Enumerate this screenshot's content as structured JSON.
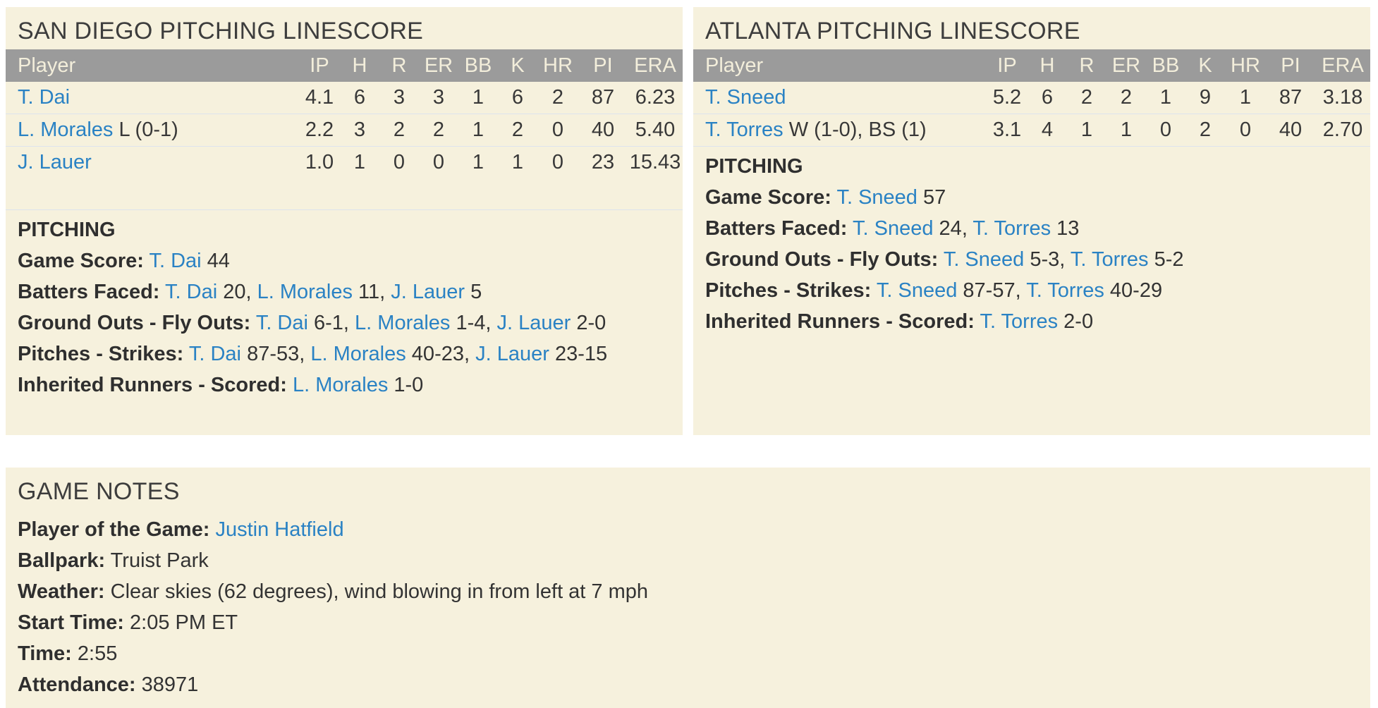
{
  "colors": {
    "page_bg": "#ffffff",
    "panel_bg": "#f6f1dd",
    "table_header_bg": "#9b9b9b",
    "table_header_text": "#f3eedb",
    "title_text": "#3d3d3d",
    "body_text": "#333333",
    "link": "#2a82c4",
    "row_divider": "#dde3ed"
  },
  "panels": {
    "san_diego": {
      "title": "SAN DIEGO PITCHING LINESCORE",
      "columns": [
        "Player",
        "IP",
        "H",
        "R",
        "ER",
        "BB",
        "K",
        "HR",
        "PI",
        "ERA"
      ],
      "rows": [
        {
          "player": "T. Dai",
          "suffix": "",
          "stats": [
            "4.1",
            "6",
            "3",
            "3",
            "1",
            "6",
            "2",
            "87",
            "6.23"
          ]
        },
        {
          "player": "L. Morales",
          "suffix": "L (0-1)",
          "stats": [
            "2.2",
            "3",
            "2",
            "2",
            "1",
            "2",
            "0",
            "40",
            "5.40"
          ]
        },
        {
          "player": "J. Lauer",
          "suffix": "",
          "stats": [
            "1.0",
            "1",
            "0",
            "0",
            "1",
            "1",
            "0",
            "23",
            "15.43"
          ]
        }
      ],
      "notes_heading": "PITCHING",
      "notes": [
        {
          "label": "Game Score:",
          "segments": [
            [
              "link",
              "T. Dai"
            ],
            [
              "text",
              " 44"
            ]
          ]
        },
        {
          "label": "Batters Faced:",
          "segments": [
            [
              "link",
              "T. Dai"
            ],
            [
              "text",
              " 20, "
            ],
            [
              "link",
              "L. Morales"
            ],
            [
              "text",
              " 11, "
            ],
            [
              "link",
              "J. Lauer"
            ],
            [
              "text",
              " 5"
            ]
          ]
        },
        {
          "label": "Ground Outs - Fly Outs:",
          "segments": [
            [
              "link",
              "T. Dai"
            ],
            [
              "text",
              " 6-1, "
            ],
            [
              "link",
              "L. Morales"
            ],
            [
              "text",
              " 1-4, "
            ],
            [
              "link",
              "J. Lauer"
            ],
            [
              "text",
              " 2-0"
            ]
          ]
        },
        {
          "label": "Pitches - Strikes:",
          "segments": [
            [
              "link",
              "T. Dai"
            ],
            [
              "text",
              " 87-53, "
            ],
            [
              "link",
              "L. Morales"
            ],
            [
              "text",
              " 40-23, "
            ],
            [
              "link",
              "J. Lauer"
            ],
            [
              "text",
              " 23-15"
            ]
          ]
        },
        {
          "label": "Inherited Runners - Scored:",
          "segments": [
            [
              "link",
              "L. Morales"
            ],
            [
              "text",
              " 1-0"
            ]
          ]
        }
      ]
    },
    "atlanta": {
      "title": "ATLANTA PITCHING LINESCORE",
      "columns": [
        "Player",
        "IP",
        "H",
        "R",
        "ER",
        "BB",
        "K",
        "HR",
        "PI",
        "ERA"
      ],
      "rows": [
        {
          "player": "T. Sneed",
          "suffix": "",
          "stats": [
            "5.2",
            "6",
            "2",
            "2",
            "1",
            "9",
            "1",
            "87",
            "3.18"
          ]
        },
        {
          "player": "T. Torres",
          "suffix": "W (1-0), BS (1)",
          "stats": [
            "3.1",
            "4",
            "1",
            "1",
            "0",
            "2",
            "0",
            "40",
            "2.70"
          ]
        }
      ],
      "notes_heading": "PITCHING",
      "notes": [
        {
          "label": "Game Score:",
          "segments": [
            [
              "link",
              "T. Sneed"
            ],
            [
              "text",
              " 57"
            ]
          ]
        },
        {
          "label": "Batters Faced:",
          "segments": [
            [
              "link",
              "T. Sneed"
            ],
            [
              "text",
              " 24, "
            ],
            [
              "link",
              "T. Torres"
            ],
            [
              "text",
              " 13"
            ]
          ]
        },
        {
          "label": "Ground Outs - Fly Outs:",
          "segments": [
            [
              "link",
              "T. Sneed"
            ],
            [
              "text",
              " 5-3, "
            ],
            [
              "link",
              "T. Torres"
            ],
            [
              "text",
              " 5-2"
            ]
          ]
        },
        {
          "label": "Pitches - Strikes:",
          "segments": [
            [
              "link",
              "T. Sneed"
            ],
            [
              "text",
              " 87-57, "
            ],
            [
              "link",
              "T. Torres"
            ],
            [
              "text",
              " 40-29"
            ]
          ]
        },
        {
          "label": "Inherited Runners - Scored:",
          "segments": [
            [
              "link",
              "T. Torres"
            ],
            [
              "text",
              " 2-0"
            ]
          ]
        }
      ]
    }
  },
  "game_notes": {
    "title": "GAME NOTES",
    "notes": [
      {
        "label": "Player of the Game:",
        "segments": [
          [
            "link",
            "Justin Hatfield"
          ]
        ]
      },
      {
        "label": "Ballpark:",
        "segments": [
          [
            "text",
            "Truist Park"
          ]
        ]
      },
      {
        "label": "Weather:",
        "segments": [
          [
            "text",
            "Clear skies (62 degrees), wind blowing in from left at 7 mph"
          ]
        ]
      },
      {
        "label": "Start Time:",
        "segments": [
          [
            "text",
            "2:05 PM ET"
          ]
        ]
      },
      {
        "label": "Time:",
        "segments": [
          [
            "text",
            "2:55"
          ]
        ]
      },
      {
        "label": "Attendance:",
        "segments": [
          [
            "text",
            "38971"
          ]
        ]
      }
    ]
  }
}
